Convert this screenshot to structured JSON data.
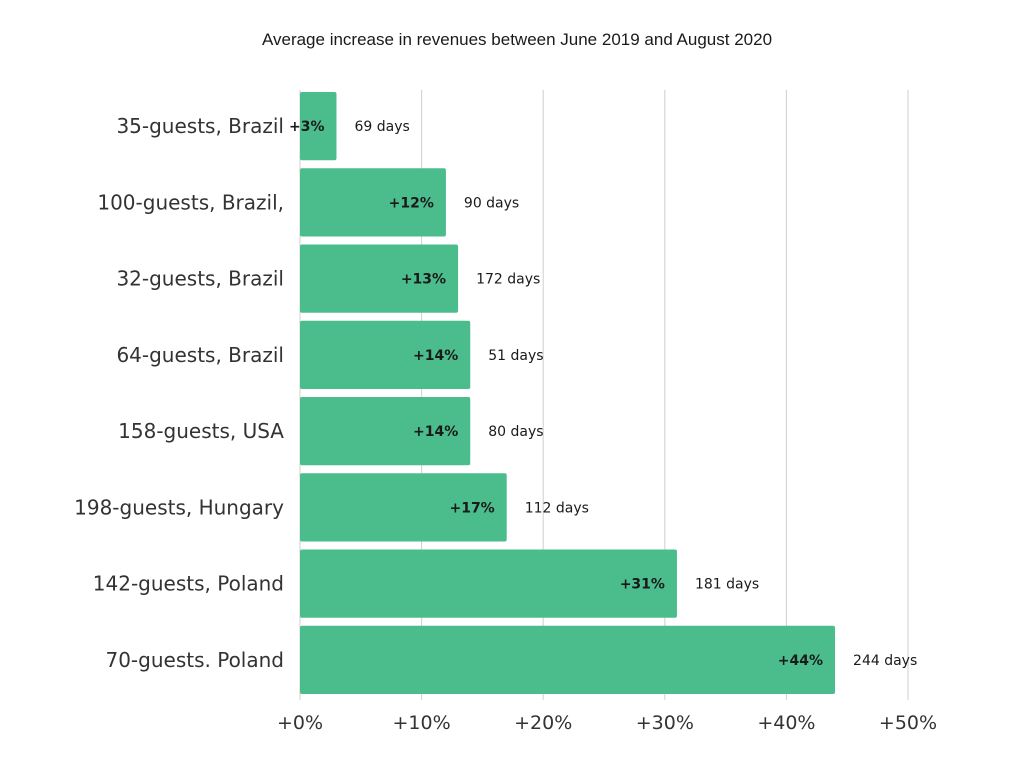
{
  "chart_data": {
    "type": "bar",
    "orientation": "horizontal",
    "title": "Average increase in revenues between June 2019 and August 2020",
    "categories": [
      "35-guests, Brazil",
      "100-guests, Brazil,",
      "32-guests, Brazil",
      "64-guests, Brazil",
      "158-guests, USA",
      "198-guests, Hungary",
      "142-guests, Poland",
      "70-guests. Poland"
    ],
    "values": [
      3,
      12,
      13,
      14,
      14,
      17,
      31,
      44
    ],
    "value_labels": [
      "+3%",
      "+12%",
      "+13%",
      "+14%",
      "+14%",
      "+17%",
      "+31%",
      "+44%"
    ],
    "annotations": [
      "69 days",
      "90 days",
      "172 days",
      "51 days",
      "80 days",
      "112 days",
      "181 days",
      "244 days"
    ],
    "x_ticks": [
      0,
      10,
      20,
      30,
      40,
      50
    ],
    "x_tick_labels": [
      "+0%",
      "+10%",
      "+20%",
      "+30%",
      "+40%",
      "+50%"
    ],
    "xlim": [
      0,
      50
    ],
    "grid": "vertical",
    "bar_color": "#4bbd8c"
  }
}
